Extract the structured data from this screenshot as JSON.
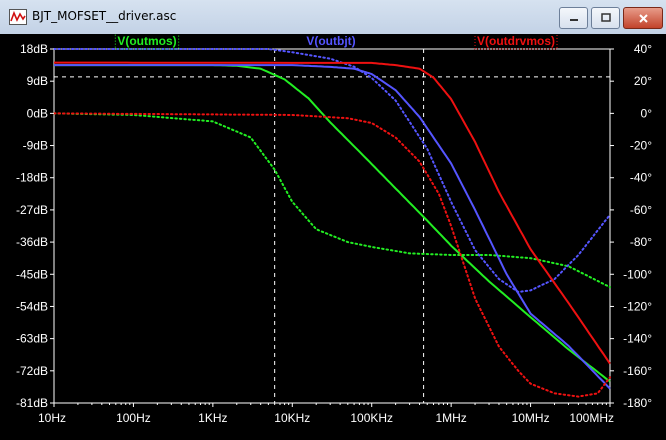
{
  "window": {
    "title": "BJT_MOFSET__driver.asc"
  },
  "icons": {
    "app": "waveform-icon",
    "minimize": "minimize-icon",
    "maximize": "maximize-icon",
    "close": "close-icon"
  },
  "chart_data": {
    "type": "line",
    "xscale": "log",
    "x_range": [
      10,
      100000000
    ],
    "x_ticks": [
      "10Hz",
      "100Hz",
      "1KHz",
      "10KHz",
      "100KHz",
      "1MHz",
      "10MHz",
      "100MHz"
    ],
    "y_left": {
      "unit": "dB",
      "range": [
        -81,
        18
      ],
      "ticks": [
        "18dB",
        "9dB",
        "0dB",
        "-9dB",
        "-18dB",
        "-27dB",
        "-36dB",
        "-45dB",
        "-54dB",
        "-63dB",
        "-72dB",
        "-81dB"
      ]
    },
    "y_right": {
      "unit": "deg",
      "range": [
        -180,
        40
      ],
      "ticks": [
        "40°",
        "20°",
        "0°",
        "-20°",
        "-40°",
        "-60°",
        "-80°",
        "-100°",
        "-120°",
        "-140°",
        "-160°",
        "-180°"
      ]
    },
    "grid": "cursor-lines",
    "cursors": {
      "horizontal_db": 10.2,
      "vertical_hz": [
        6000,
        450000
      ]
    },
    "background": "#000000",
    "series": [
      {
        "name": "V(outmos)",
        "color": "#22ee22",
        "magnitude_db": {
          "x": [
            10,
            1000,
            2000,
            4000,
            8000,
            16000,
            30000,
            80000,
            200000,
            500000,
            1000000,
            3000000,
            10000000,
            30000000,
            100000000
          ],
          "y": [
            13.5,
            13.5,
            13.3,
            12.5,
            9.5,
            4.2,
            -2.5,
            -12,
            -21,
            -30,
            -37,
            -47,
            -57,
            -66,
            -75
          ]
        },
        "phase_deg": {
          "x": [
            10,
            100,
            1000,
            3000,
            6000,
            10000,
            20000,
            50000,
            100000,
            300000,
            1000000,
            3000000,
            10000000,
            30000000,
            100000000
          ],
          "y": [
            0,
            -1,
            -5,
            -15,
            -35,
            -55,
            -72,
            -80,
            -83,
            -87,
            -88,
            -88,
            -90,
            -95,
            -108
          ]
        }
      },
      {
        "name": "V(outbjt)",
        "color": "#5555ff",
        "magnitude_db": {
          "x": [
            10,
            10000,
            30000,
            60000,
            100000,
            200000,
            400000,
            1000000,
            2000000,
            5000000,
            10000000,
            30000000,
            100000000
          ],
          "y": [
            13.5,
            13.5,
            13.0,
            12.5,
            11.0,
            6.5,
            -1,
            -14,
            -27,
            -45,
            -56,
            -65,
            -77
          ]
        },
        "phase_deg": {
          "x": [
            10,
            5000,
            10000,
            30000,
            60000,
            100000,
            200000,
            500000,
            1000000,
            2000000,
            4000000,
            7000000,
            10000000,
            20000000,
            40000000,
            100000000
          ],
          "y": [
            40,
            40,
            38,
            34,
            29,
            22,
            8,
            -22,
            -55,
            -85,
            -103,
            -111,
            -110,
            -103,
            -88,
            -63
          ]
        }
      },
      {
        "name": "V(outdrvmos)",
        "color": "#ee1111",
        "magnitude_db": {
          "x": [
            10,
            100000,
            200000,
            400000,
            600000,
            1000000,
            2000000,
            4000000,
            10000000,
            30000000,
            100000000
          ],
          "y": [
            14.2,
            14.1,
            13.5,
            12.5,
            10,
            4,
            -8,
            -22,
            -38,
            -53,
            -70
          ]
        },
        "phase_deg": {
          "x": [
            10,
            10000,
            50000,
            100000,
            200000,
            400000,
            700000,
            1000000,
            2000000,
            4000000,
            7000000,
            10000000,
            20000000,
            40000000,
            70000000,
            100000000
          ],
          "y": [
            0,
            -1,
            -3,
            -6,
            -15,
            -30,
            -50,
            -70,
            -115,
            -145,
            -160,
            -168,
            -174,
            -176,
            -174,
            -164
          ]
        }
      }
    ]
  }
}
